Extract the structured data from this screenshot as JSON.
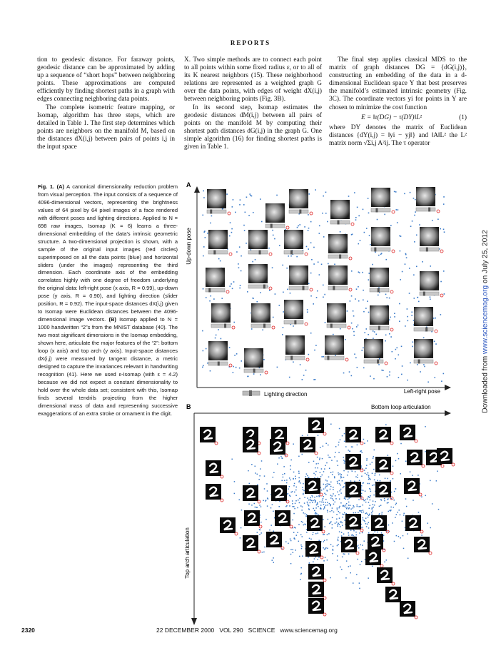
{
  "header": {
    "title": "Reports"
  },
  "columns": [
    {
      "paragraphs": [
        "tion to geodesic distance. For faraway points, geodesic distance can be approximated by adding up a sequence of “short hops” between neighboring points. These approximations are computed efficiently by finding shortest paths in a graph with edges connecting neighboring data points.",
        "The complete isometric feature mapping, or Isomap, algorithm has three steps, which are detailed in Table 1. The first step determines which points are neighbors on the manifold M, based on the distances dX(i,j) between pairs of points i,j in the input space"
      ]
    },
    {
      "paragraphs": [
        "X. Two simple methods are to connect each point to all points within some fixed radius ε, or to all of its K nearest neighbors (15). These neighborhood relations are represented as a weighted graph G over the data points, with edges of weight dX(i,j) between neighboring points (Fig. 3B).",
        "In its second step, Isomap estimates the geodesic distances dM(i,j) between all pairs of points on the manifold M by computing their shortest path distances dG(i,j) in the graph G. One simple algorithm (16) for finding shortest paths is given in Table 1."
      ]
    },
    {
      "paragraphs": [
        "The final step applies classical MDS to the matrix of graph distances DG = {dG(i,j)}, constructing an embedding of the data in a d-dimensional Euclidean space Y that best preserves the manifold’s estimated intrinsic geometry (Fig. 3C). The coordinate vectors yi for points in Y are chosen to minimize the cost function",
        "where DY denotes the matrix of Euclidean distances {dY(i,j) = ‖yi − yj‖} and ‖A‖L² the L² matrix norm √Σi,j A²ij. The τ operator"
      ],
      "equation": {
        "text": "E = ‖τ(DG) − τ(DY)‖L²",
        "number": "(1)"
      }
    }
  ],
  "caption": {
    "label": "Fig. 1.",
    "panel_a": "(A)",
    "text_a": "A canonical dimensionality reduction problem from visual perception. The input consists of a sequence of 4096-dimensional vectors, representing the brightness values of 64 pixel by 64 pixel images of a face rendered with different poses and lighting directions. Applied to N = 698 raw images, Isomap (K = 6) learns a three-dimensional embedding of the data’s intrinsic geometric structure. A two-dimensional projection is shown, with a sample of the original input images (red circles) superimposed on all the data points (blue) and horizontal sliders (under the images) representing the third dimension. Each coordinate axis of the embedding correlates highly with one degree of freedom underlying the original data: left-right pose (x axis, R = 0.99), up-down pose (y axis, R = 0.90), and lighting direction (slider position, R = 0.92). The input-space distances dX(i,j) given to Isomap were Euclidean distances between the 4096-dimensional image vectors.",
    "panel_b": "(B)",
    "text_b": "Isomap applied to N = 1000 handwritten “2”s from the MNIST database (40). The two most significant dimensions in the Isomap embedding, shown here, articulate the major features of the “2”: bottom loop (x axis) and top arch (y axis). Input-space distances dX(i,j) were measured by tangent distance, a metric designed to capture the invariances relevant in handwriting recognition (41). Here we used ε-Isomap (with ε = 4.2) because we did not expect a constant dimensionality to hold over the whole data set; consistent with this, Isomap finds several tendrils projecting from the higher dimensional mass of data and representing successive exaggerations of an extra stroke or ornament in the digit."
  },
  "figure": {
    "panel_a": {
      "label": "A",
      "y_axis": "Up-down pose",
      "slider_label": "Lighting direction",
      "x_axis": "Left-right pose"
    },
    "panel_b": {
      "label": "B",
      "x_axis": "Bottom loop articulation",
      "y_axis": "Top arch articulation"
    }
  },
  "side_note": {
    "prefix": "Downloaded from",
    "link": "www.sciencemag.org",
    "suffix": "on July 25, 2012"
  },
  "footer": {
    "page": "2320",
    "issue": "22 DECEMBER 2000   VOL 290   SCIENCE   www.sciencemag.org"
  }
}
